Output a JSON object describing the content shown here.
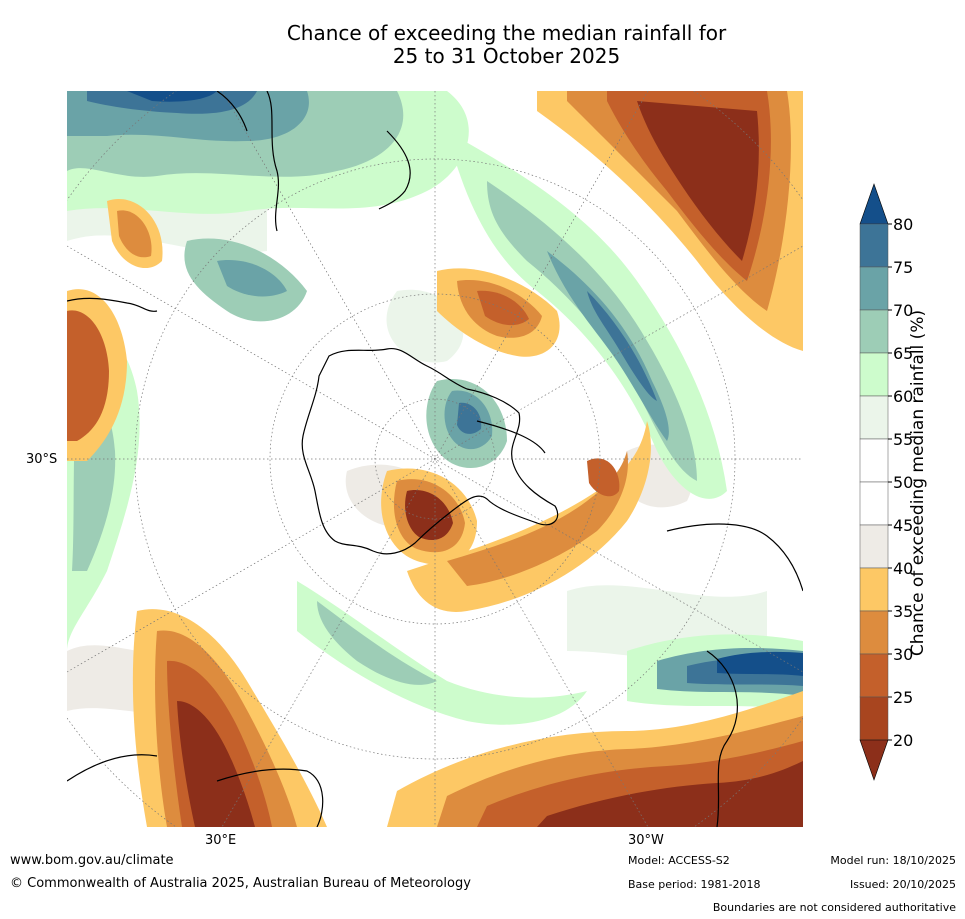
{
  "title_line1": "Chance of exceeding the median rainfall for",
  "title_line2": "25 to 31 October 2025",
  "map_labels": {
    "lat": "30°S",
    "lon_east": "30°E",
    "lon_west": "30°W"
  },
  "colorbar": {
    "label": "Chance of exceeding median rainfall (%)",
    "ticks": [
      "80",
      "75",
      "70",
      "65",
      "60",
      "55",
      "50",
      "45",
      "40",
      "35",
      "30",
      "25",
      "20"
    ],
    "bands": [
      {
        "color": "#144f8a"
      },
      {
        "color": "#3d7497"
      },
      {
        "color": "#6aa3a7"
      },
      {
        "color": "#9dcdb6"
      },
      {
        "color": "#cdfccc"
      },
      {
        "color": "#ebf5ea"
      },
      {
        "color": "#ffffff"
      },
      {
        "color": "#ffffff"
      },
      {
        "color": "#eeebe6"
      },
      {
        "color": "#fdc865"
      },
      {
        "color": "#dd8c3e"
      },
      {
        "color": "#c4602b"
      },
      {
        "color": "#a8451f"
      },
      {
        "color": "#8c2f1a"
      }
    ]
  },
  "footer": {
    "website": "www.bom.gov.au/climate",
    "copyright": "© Commonwealth of Australia 2025, Australian Bureau of Meteorology",
    "model": "Model: ACCESS-S2",
    "base_period": "Base period: 1981-2018",
    "model_run": "Model run: 18/10/2025",
    "issued": "Issued: 20/10/2025",
    "disclaimer": "Boundaries are not considered authoritative"
  }
}
